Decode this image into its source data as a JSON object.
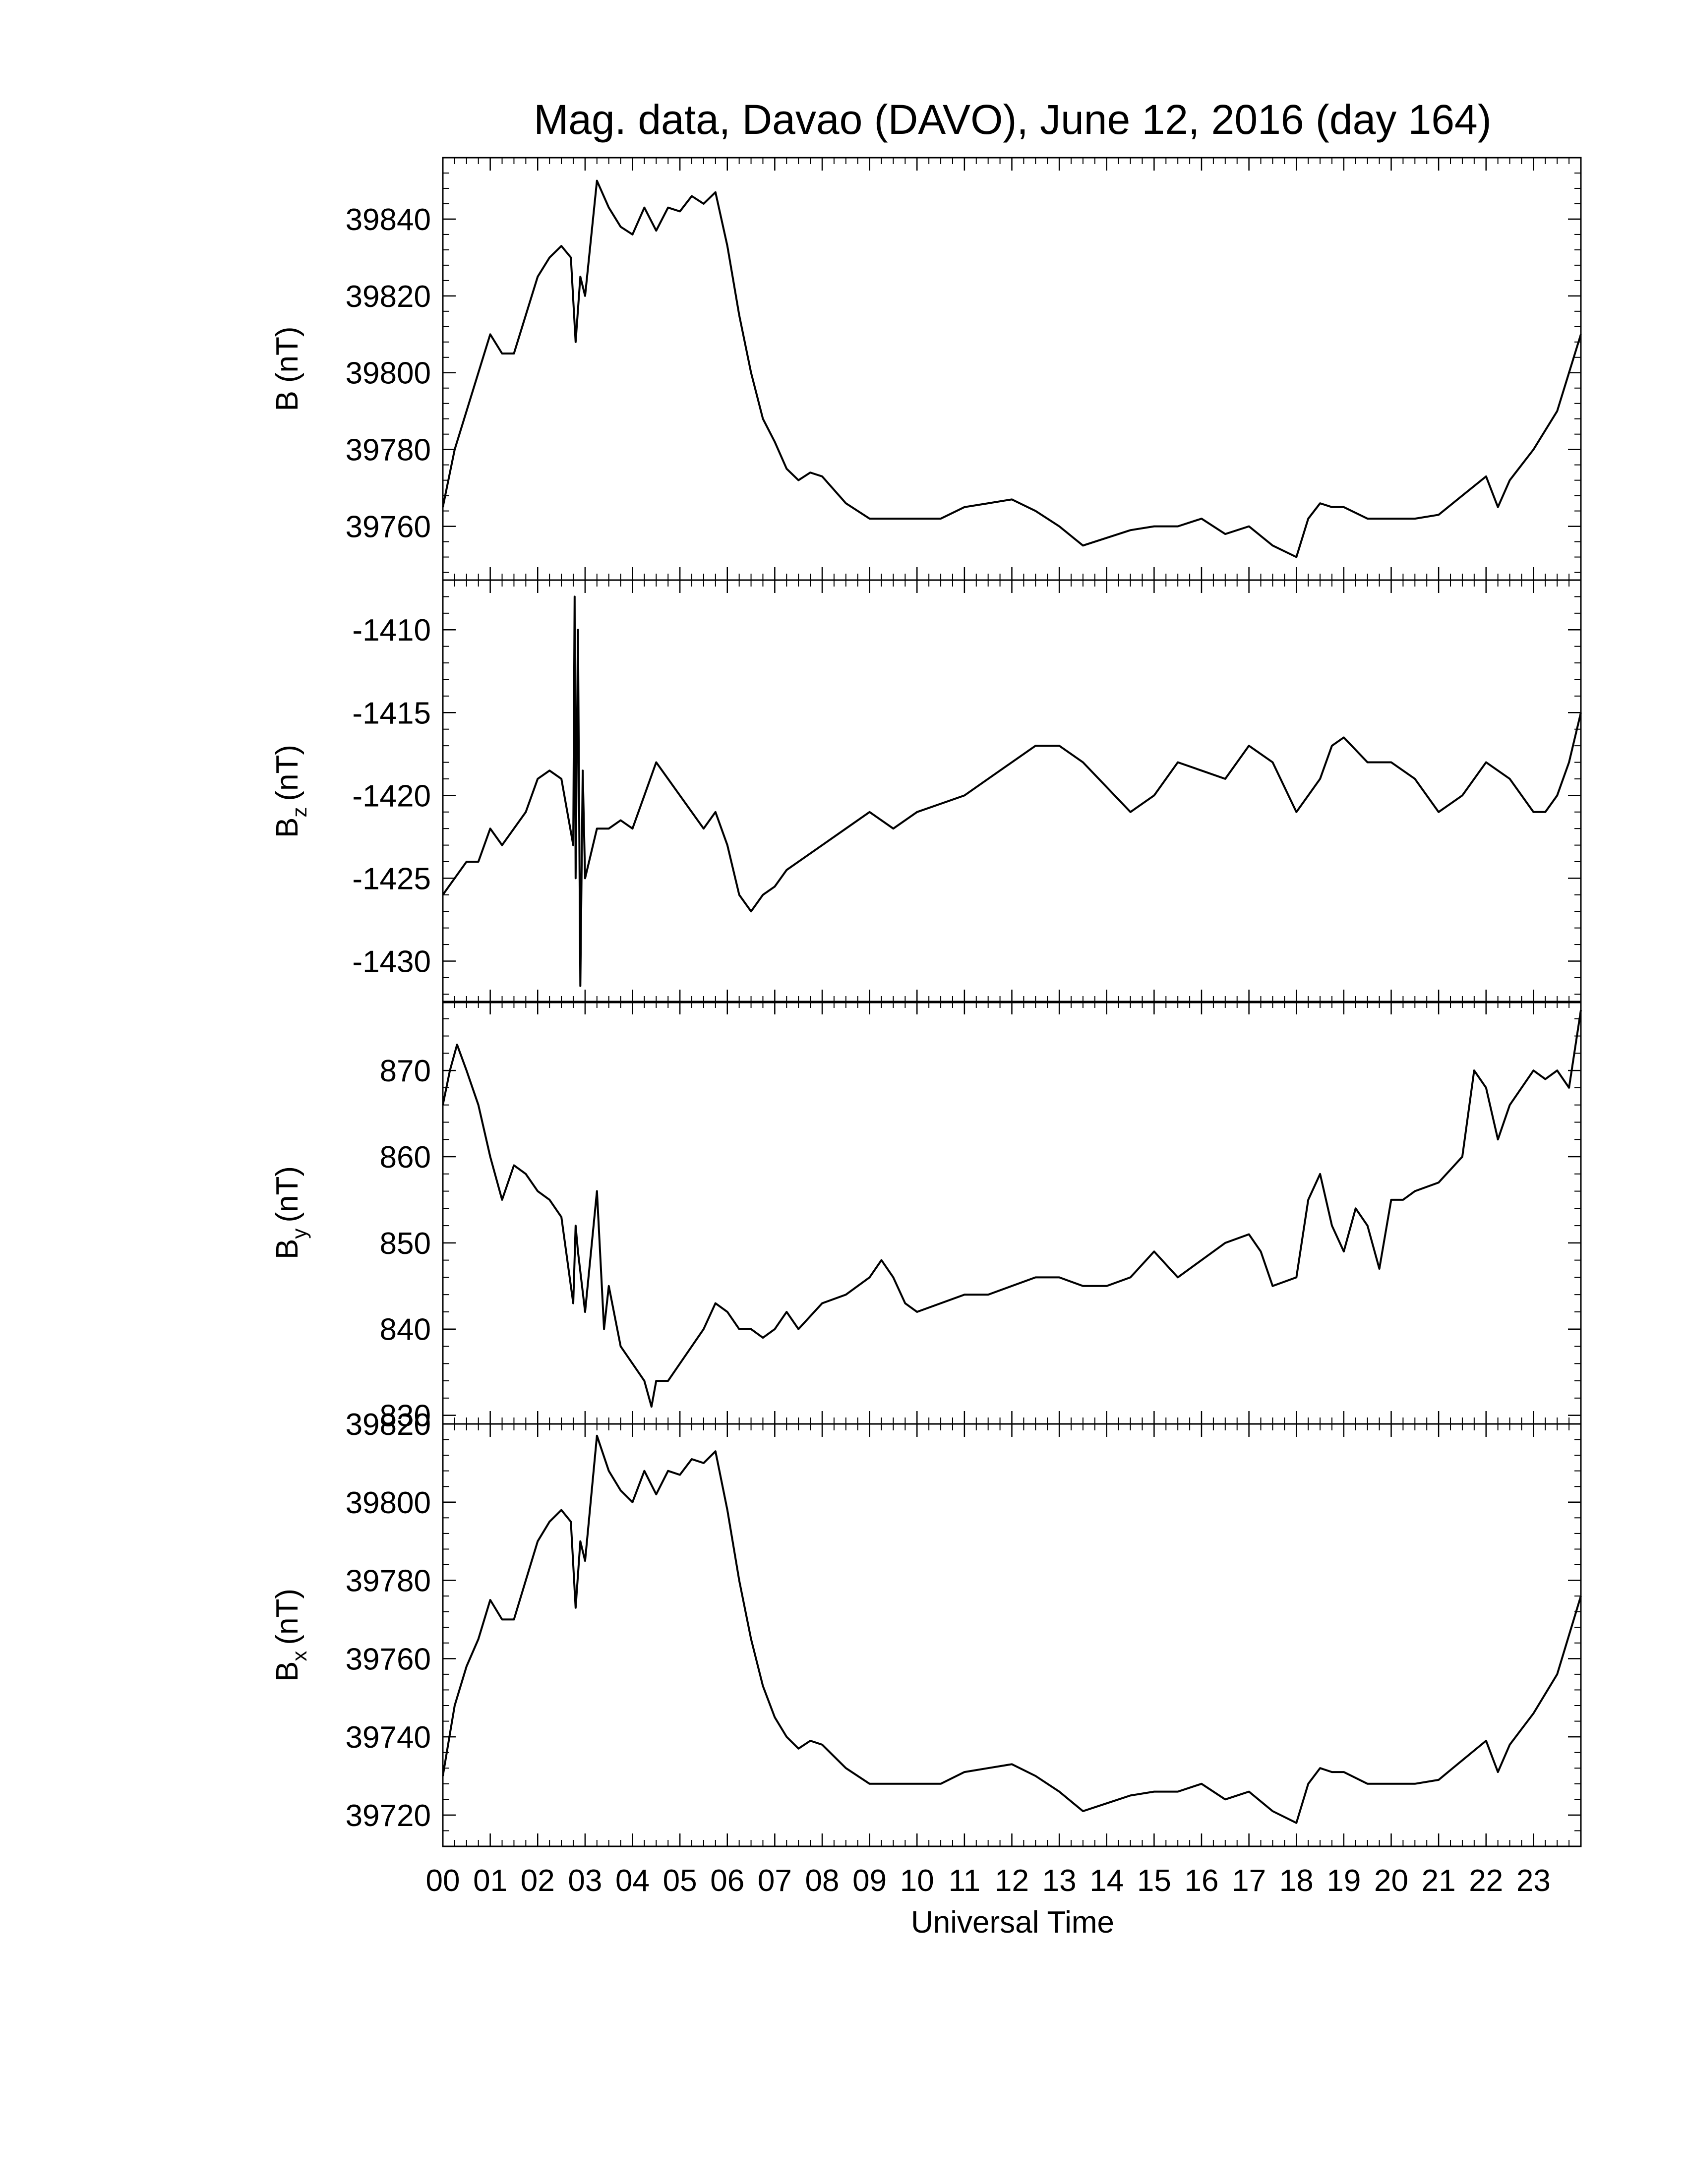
{
  "chart_data": {
    "type": "line",
    "title": "Mag. data, Davao (DAVO), June 12, 2016 (day 164)",
    "xlabel": "Universal Time",
    "xlim": [
      0,
      24
    ],
    "x_tick_labels": [
      "00",
      "01",
      "02",
      "03",
      "04",
      "05",
      "06",
      "07",
      "08",
      "09",
      "10",
      "11",
      "12",
      "13",
      "14",
      "15",
      "16",
      "17",
      "18",
      "19",
      "20",
      "21",
      "22",
      "23"
    ],
    "grid": false,
    "line_color": "#000000",
    "panels": [
      {
        "ylabel": "B (nT)",
        "ylabel_base": "B",
        "ylabel_sub": "",
        "ylabel_unit": "(nT)",
        "ylim": [
          39746,
          39856
        ],
        "yticks": [
          39760,
          39780,
          39800,
          39820,
          39840
        ],
        "ytick_labels": [
          "39760",
          "39780",
          "39800",
          "39820",
          "39840"
        ],
        "x": [
          0,
          0.25,
          0.5,
          0.75,
          1.0,
          1.25,
          1.5,
          1.75,
          2.0,
          2.25,
          2.5,
          2.7,
          2.8,
          2.9,
          3.0,
          3.25,
          3.5,
          3.75,
          4.0,
          4.25,
          4.5,
          4.75,
          5.0,
          5.25,
          5.5,
          5.75,
          6.0,
          6.25,
          6.5,
          6.75,
          7.0,
          7.25,
          7.5,
          7.75,
          8.0,
          8.5,
          9.0,
          9.5,
          10.0,
          10.5,
          11.0,
          11.5,
          12.0,
          12.5,
          13.0,
          13.5,
          14.0,
          14.5,
          15.0,
          15.5,
          16.0,
          16.5,
          17.0,
          17.5,
          18.0,
          18.25,
          18.5,
          18.75,
          19.0,
          19.5,
          20.0,
          20.5,
          21.0,
          21.5,
          22.0,
          22.25,
          22.5,
          22.75,
          23.0,
          23.25,
          23.5,
          23.75,
          24.0
        ],
        "values": [
          39765,
          39780,
          39790,
          39800,
          39810,
          39805,
          39805,
          39815,
          39825,
          39830,
          39833,
          39830,
          39808,
          39825,
          39820,
          39850,
          39843,
          39838,
          39836,
          39843,
          39837,
          39843,
          39842,
          39846,
          39844,
          39847,
          39833,
          39815,
          39800,
          39788,
          39782,
          39775,
          39772,
          39774,
          39773,
          39766,
          39762,
          39762,
          39762,
          39762,
          39765,
          39766,
          39767,
          39764,
          39760,
          39755,
          39757,
          39759,
          39760,
          39760,
          39762,
          39758,
          39760,
          39755,
          39752,
          39762,
          39766,
          39765,
          39765,
          39762,
          39762,
          39762,
          39763,
          39768,
          39773,
          39765,
          39772,
          39776,
          39780,
          39785,
          39790,
          39800,
          39810
        ]
      },
      {
        "ylabel": "Bz (nT)",
        "ylabel_base": "B",
        "ylabel_sub": "z",
        "ylabel_unit": "(nT)",
        "ylim": [
          -1432.5,
          -1407
        ],
        "yticks": [
          -1430,
          -1425,
          -1420,
          -1415,
          -1410
        ],
        "ytick_labels": [
          "-1430",
          "-1425",
          "-1420",
          "-1415",
          "-1410"
        ],
        "x": [
          0,
          0.25,
          0.5,
          0.75,
          1.0,
          1.25,
          1.5,
          1.75,
          2.0,
          2.25,
          2.5,
          2.75,
          2.78,
          2.8,
          2.85,
          2.9,
          2.95,
          3.0,
          3.25,
          3.5,
          3.75,
          4.0,
          4.25,
          4.5,
          4.75,
          5.0,
          5.25,
          5.5,
          5.75,
          6.0,
          6.25,
          6.5,
          6.75,
          7.0,
          7.25,
          7.5,
          8.0,
          8.5,
          9.0,
          9.5,
          10.0,
          10.5,
          11.0,
          11.5,
          12.0,
          12.5,
          13.0,
          13.5,
          14.0,
          14.5,
          15.0,
          15.5,
          16.0,
          16.5,
          17.0,
          17.5,
          18.0,
          18.25,
          18.5,
          18.75,
          19.0,
          19.5,
          20.0,
          20.5,
          21.0,
          21.5,
          22.0,
          22.5,
          23.0,
          23.25,
          23.5,
          23.75,
          24.0
        ],
        "values": [
          -1426,
          -1425,
          -1424,
          -1424,
          -1422,
          -1423,
          -1422,
          -1421,
          -1419,
          -1418.5,
          -1419,
          -1423,
          -1408,
          -1425,
          -1410,
          -1431.5,
          -1418.5,
          -1425,
          -1422,
          -1422,
          -1421.5,
          -1422,
          -1420,
          -1418,
          -1419,
          -1420,
          -1421,
          -1422,
          -1421,
          -1423,
          -1426,
          -1427,
          -1426,
          -1425.5,
          -1424.5,
          -1424,
          -1423,
          -1422,
          -1421,
          -1422,
          -1421,
          -1420.5,
          -1420,
          -1419,
          -1418,
          -1417,
          -1417,
          -1418,
          -1419.5,
          -1421,
          -1420,
          -1418,
          -1418.5,
          -1419,
          -1417,
          -1418,
          -1421,
          -1420,
          -1419,
          -1417,
          -1416.5,
          -1418,
          -1418,
          -1419,
          -1421,
          -1420,
          -1418,
          -1419,
          -1421,
          -1421,
          -1420,
          -1418,
          -1415
        ]
      },
      {
        "ylabel": "By (nT)",
        "ylabel_base": "B",
        "ylabel_sub": "y",
        "ylabel_unit": "(nT)",
        "ylim": [
          829,
          878
        ],
        "yticks": [
          830,
          840,
          850,
          860,
          870
        ],
        "ytick_labels": [
          "830",
          "840",
          "850",
          "860",
          "870"
        ],
        "x": [
          0,
          0.15,
          0.3,
          0.5,
          0.75,
          1.0,
          1.25,
          1.5,
          1.75,
          2.0,
          2.25,
          2.5,
          2.75,
          2.8,
          2.85,
          3.0,
          3.25,
          3.4,
          3.5,
          3.75,
          4.0,
          4.25,
          4.4,
          4.5,
          4.75,
          5.0,
          5.25,
          5.5,
          5.75,
          6.0,
          6.25,
          6.5,
          6.75,
          7.0,
          7.25,
          7.5,
          8.0,
          8.5,
          9.0,
          9.25,
          9.5,
          9.75,
          10.0,
          10.5,
          11.0,
          11.5,
          12.0,
          12.5,
          13.0,
          13.5,
          14.0,
          14.5,
          15.0,
          15.5,
          16.0,
          16.5,
          17.0,
          17.25,
          17.5,
          18.0,
          18.25,
          18.5,
          18.75,
          19.0,
          19.25,
          19.5,
          19.75,
          20.0,
          20.25,
          20.5,
          21.0,
          21.5,
          21.75,
          22.0,
          22.25,
          22.5,
          22.75,
          23.0,
          23.25,
          23.5,
          23.75,
          24.0
        ],
        "values": [
          866,
          870,
          873,
          870,
          866,
          860,
          855,
          859,
          858,
          856,
          855,
          853,
          843,
          852,
          849,
          842,
          856,
          840,
          845,
          838,
          836,
          834,
          831,
          834,
          834,
          836,
          838,
          840,
          843,
          842,
          840,
          840,
          839,
          840,
          842,
          840,
          843,
          844,
          846,
          848,
          846,
          843,
          842,
          843,
          844,
          844,
          845,
          846,
          846,
          845,
          845,
          846,
          849,
          846,
          848,
          850,
          851,
          849,
          845,
          846,
          855,
          858,
          852,
          849,
          854,
          852,
          847,
          855,
          855,
          856,
          857,
          860,
          870,
          868,
          862,
          866,
          868,
          870,
          869,
          870,
          868,
          877
        ]
      },
      {
        "ylabel": "Bx (nT)",
        "ylabel_base": "B",
        "ylabel_sub": "x",
        "ylabel_unit": "(nT)",
        "ylim": [
          39712,
          39820
        ],
        "yticks": [
          39720,
          39740,
          39760,
          39780,
          39800,
          39820
        ],
        "ytick_labels": [
          "39720",
          "39740",
          "39760",
          "39780",
          "39800",
          "39820"
        ],
        "x": [
          0,
          0.25,
          0.5,
          0.75,
          1.0,
          1.25,
          1.5,
          1.75,
          2.0,
          2.25,
          2.5,
          2.7,
          2.8,
          2.9,
          3.0,
          3.25,
          3.5,
          3.75,
          4.0,
          4.25,
          4.5,
          4.75,
          5.0,
          5.25,
          5.5,
          5.75,
          6.0,
          6.25,
          6.5,
          6.75,
          7.0,
          7.25,
          7.5,
          7.75,
          8.0,
          8.5,
          9.0,
          9.5,
          10.0,
          10.5,
          11.0,
          11.5,
          12.0,
          12.5,
          13.0,
          13.5,
          14.0,
          14.5,
          15.0,
          15.5,
          16.0,
          16.5,
          17.0,
          17.5,
          18.0,
          18.25,
          18.5,
          18.75,
          19.0,
          19.5,
          20.0,
          20.5,
          21.0,
          21.5,
          22.0,
          22.25,
          22.5,
          22.75,
          23.0,
          23.25,
          23.5,
          23.75,
          24.0
        ],
        "values": [
          39730,
          39748,
          39758,
          39765,
          39775,
          39770,
          39770,
          39780,
          39790,
          39795,
          39798,
          39795,
          39773,
          39790,
          39785,
          39817,
          39808,
          39803,
          39800,
          39808,
          39802,
          39808,
          39807,
          39811,
          39810,
          39813,
          39798,
          39780,
          39765,
          39753,
          39745,
          39740,
          39737,
          39739,
          39738,
          39732,
          39728,
          39728,
          39728,
          39728,
          39731,
          39732,
          39733,
          39730,
          39726,
          39721,
          39723,
          39725,
          39726,
          39726,
          39728,
          39724,
          39726,
          39721,
          39718,
          39728,
          39732,
          39731,
          39731,
          39728,
          39728,
          39728,
          39729,
          39734,
          39739,
          39731,
          39738,
          39742,
          39746,
          39751,
          39756,
          39766,
          39776
        ]
      }
    ]
  }
}
